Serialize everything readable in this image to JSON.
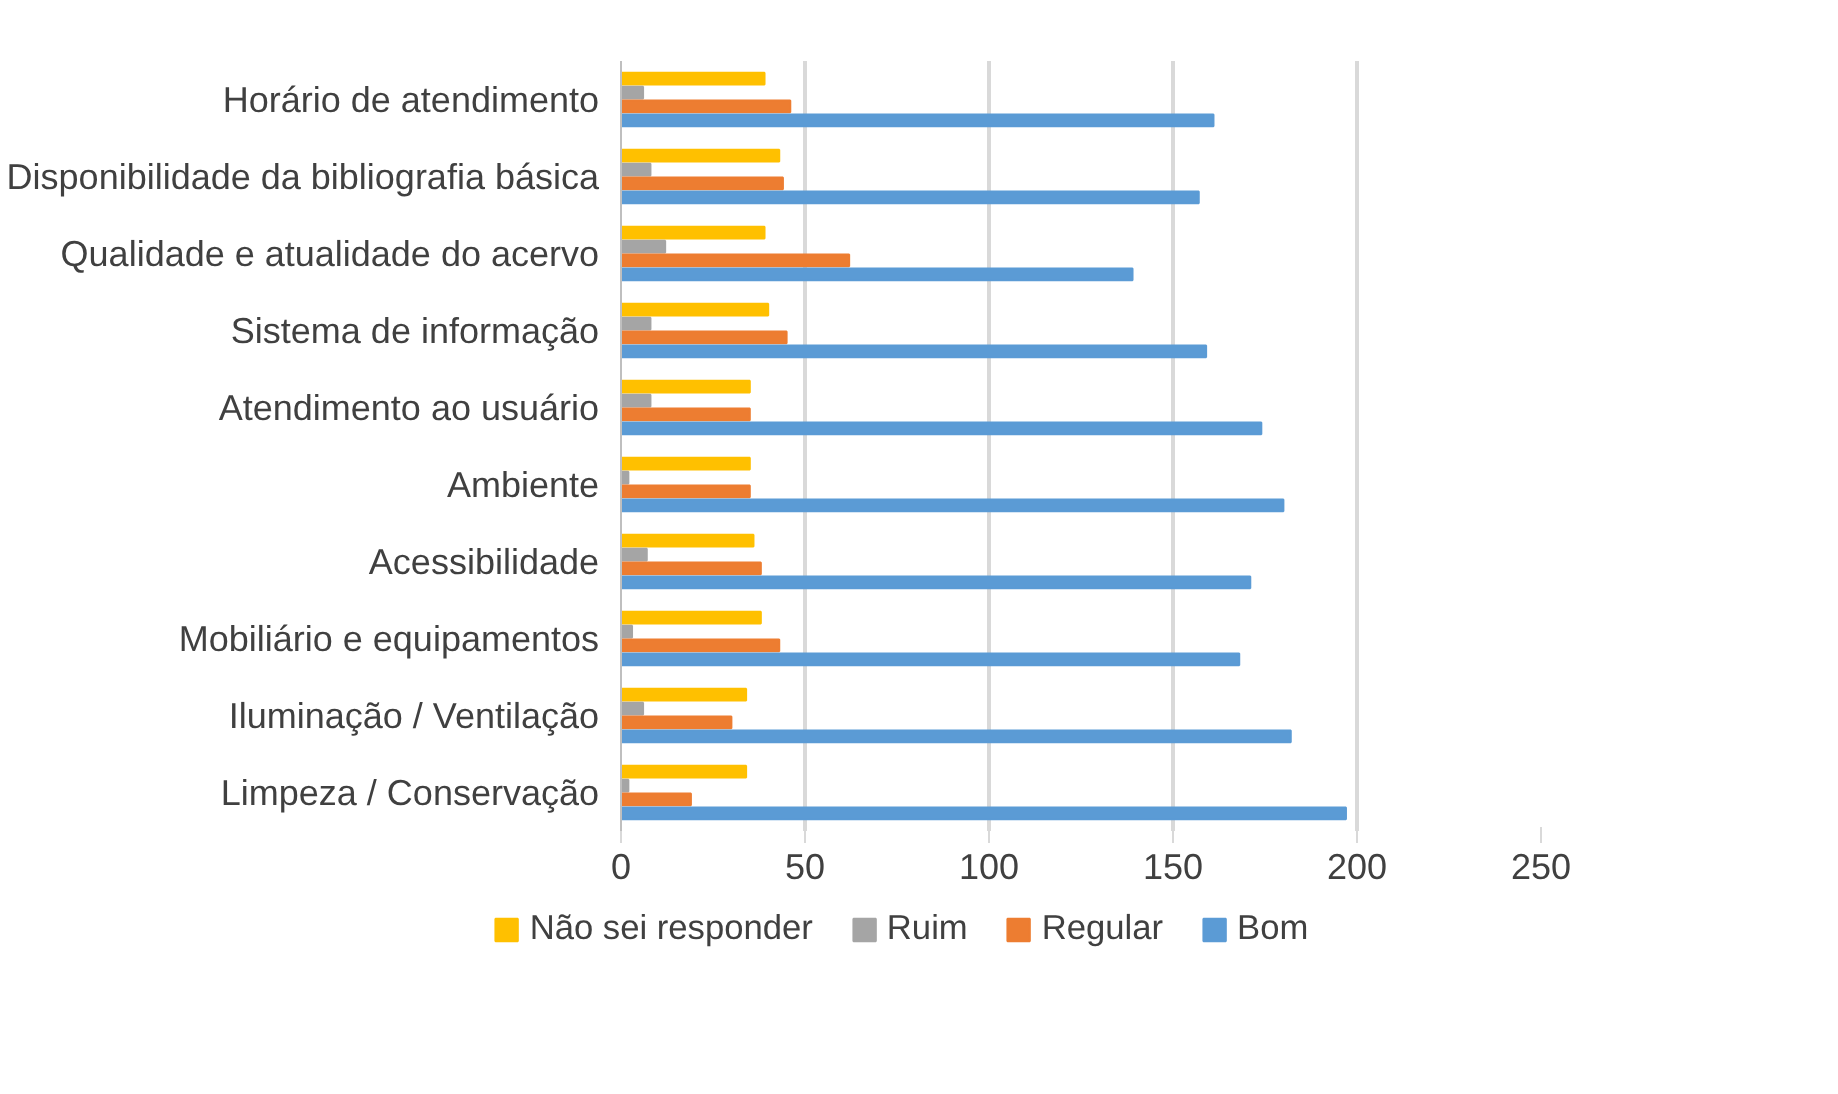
{
  "chart_data": {
    "type": "bar",
    "orientation": "horizontal",
    "categories": [
      "Horário de atendimento",
      "Disponibilidade da bibliografia básica",
      "Qualidade e atualidade do acervo",
      "Sistema de informação",
      "Atendimento ao usuário",
      "Ambiente",
      "Acessibilidade",
      "Mobiliário e equipamentos",
      "Iluminação / Ventilação",
      "Limpeza / Conservação"
    ],
    "series": [
      {
        "name": "Não sei responder",
        "color": "#ffc000",
        "values": [
          39,
          43,
          39,
          40,
          35,
          35,
          36,
          38,
          34,
          34
        ]
      },
      {
        "name": "Ruim",
        "color": "#a5a5a5",
        "values": [
          6,
          8,
          12,
          8,
          8,
          2,
          7,
          3,
          6,
          2
        ]
      },
      {
        "name": "Regular",
        "color": "#ed7d31",
        "values": [
          46,
          44,
          62,
          45,
          35,
          35,
          38,
          43,
          30,
          19
        ]
      },
      {
        "name": "Bom",
        "color": "#5b9bd5",
        "values": [
          161,
          157,
          139,
          159,
          174,
          180,
          171,
          168,
          182,
          197
        ]
      }
    ],
    "xlim": [
      0,
      250
    ],
    "xticks": [
      0,
      50,
      100,
      150,
      200,
      250
    ],
    "grid": "x",
    "legend": "bottom"
  }
}
